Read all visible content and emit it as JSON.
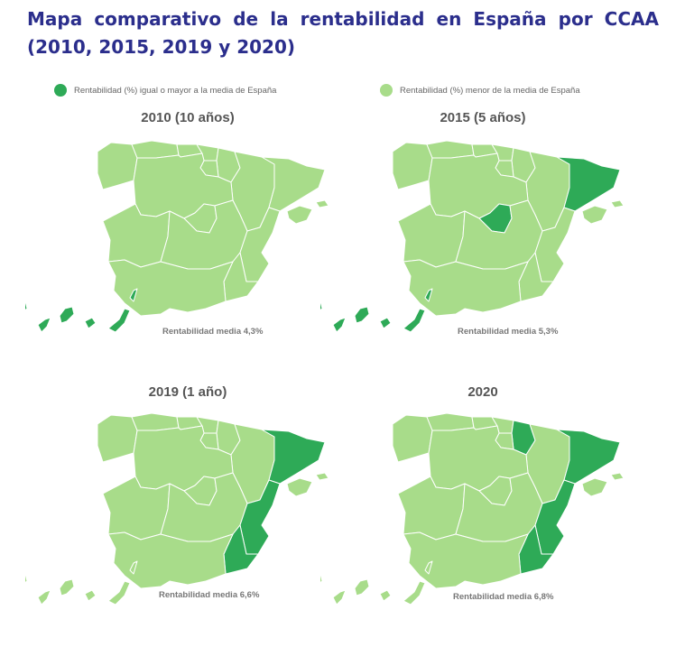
{
  "title": "Mapa comparativo de la rentabilidad en España por CCAA (2010, 2015, 2019 y 2020)",
  "legend": [
    {
      "label": "Rentabilidad (%) igual o mayor a la media de España",
      "color": "#2eaa57"
    },
    {
      "label": "Rentabilidad (%) menor de la media de España",
      "color": "#a8dc8a"
    }
  ],
  "colors": {
    "above": "#2eaa57",
    "below": "#a8dc8a",
    "border": "#ffffff"
  },
  "maps": [
    {
      "year": "2010 (10 años)",
      "average_text": "Rentabilidad media  4,3%",
      "above": [
        "Canarias"
      ]
    },
    {
      "year": "2015 (5 años)",
      "average_text": "Rentabilidad media  5,3%",
      "above": [
        "Cataluña",
        "Madrid",
        "Canarias"
      ]
    },
    {
      "year": "2019 (1 año)",
      "average_text": "Rentabilidad media  6,6%",
      "above": [
        "Cataluña",
        "Comunidad Valenciana",
        "Región de Murcia"
      ]
    },
    {
      "year": "2020",
      "average_text": "Rentabilidad media  6,8%",
      "above": [
        "Navarra",
        "Cataluña",
        "Comunidad Valenciana",
        "Región de Murcia"
      ]
    }
  ]
}
